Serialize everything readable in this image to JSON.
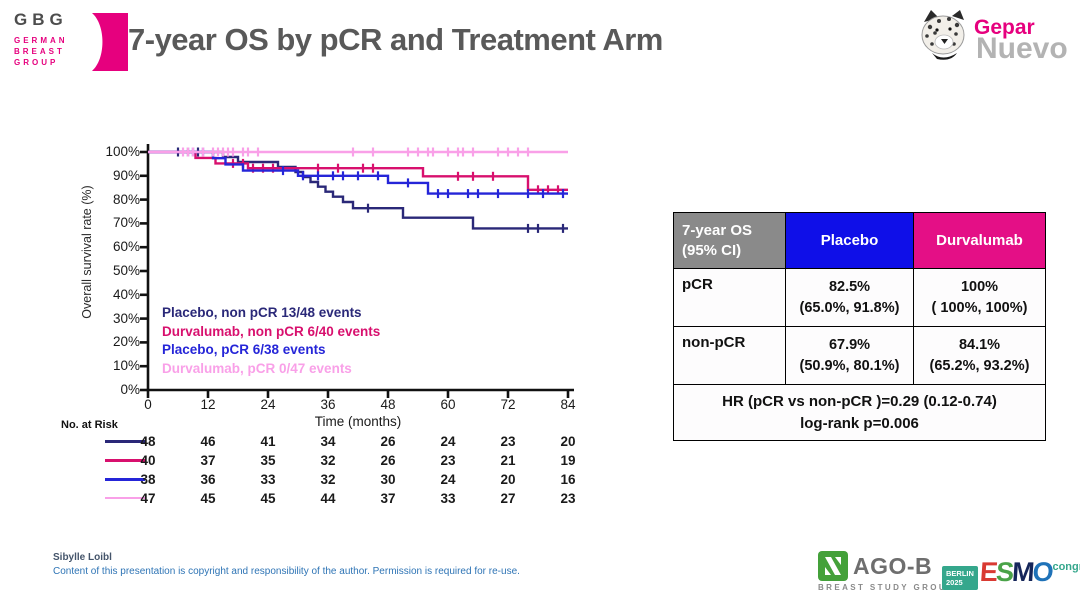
{
  "header": {
    "gbg": {
      "icon": "gbg-flag-icon",
      "acronym": "GBG",
      "lines": [
        "GERMAN",
        "BREAST",
        "GROUP"
      ],
      "brand_pink": "#e6007e"
    },
    "title": "7-year OS by pCR and Treatment Arm",
    "gepar": {
      "icon": "leopard-icon",
      "top": "Gepar",
      "bottom": "Nuevo"
    }
  },
  "chart_data": {
    "type": "line",
    "subtype": "kaplan-meier-step",
    "title": "",
    "xlabel": "Time (months)",
    "ylabel": "Overall survival rate (%)",
    "xlim": [
      0,
      84
    ],
    "ylim": [
      0,
      100
    ],
    "xticks": [
      0,
      12,
      24,
      36,
      48,
      60,
      72,
      84
    ],
    "ytick_step": 10,
    "ytick_suffix": "%",
    "grid": false,
    "legend_position": "inside lower-left",
    "at_risk_label": "No. at Risk",
    "series": [
      {
        "name": "Placebo, non pCR 13/48 events",
        "color": "#2a2878",
        "final_value": 67.9,
        "steps": [
          [
            15,
            97.9
          ],
          [
            18,
            95.8
          ],
          [
            26,
            93.7
          ],
          [
            29.5,
            91.6
          ],
          [
            31,
            89.5
          ],
          [
            32.5,
            87.4
          ],
          [
            34,
            85.4
          ],
          [
            35.5,
            83.3
          ],
          [
            37,
            81.2
          ],
          [
            39,
            79.0
          ],
          [
            41,
            76.4
          ],
          [
            51,
            72.4
          ],
          [
            65,
            67.9
          ]
        ],
        "censors": [
          6,
          8,
          10,
          44,
          76,
          78,
          83
        ],
        "at_risk": [
          48,
          46,
          41,
          34,
          26,
          24,
          23,
          20
        ]
      },
      {
        "name": "Durvalumab, non pCR 6/40 events",
        "color": "#d8106e",
        "final_value": 84.1,
        "steps": [
          [
            9.5,
            97.5
          ],
          [
            13.5,
            95.2
          ],
          [
            20,
            93.2
          ],
          [
            55,
            89.8
          ],
          [
            76,
            84.1
          ]
        ],
        "censors": [
          17,
          19,
          21,
          23,
          25,
          34,
          38,
          43,
          45,
          62,
          65,
          69,
          78,
          80,
          82
        ],
        "at_risk": [
          40,
          37,
          35,
          32,
          26,
          23,
          21,
          19
        ]
      },
      {
        "name": "Placebo, pCR 6/38 events",
        "color": "#2525d8",
        "final_value": 82.5,
        "steps": [
          [
            13,
            97.4
          ],
          [
            15.5,
            94.8
          ],
          [
            19,
            92.2
          ],
          [
            30,
            90.0
          ],
          [
            48,
            87.0
          ],
          [
            56,
            82.5
          ]
        ],
        "censors": [
          9,
          11,
          27,
          31,
          34,
          37,
          39,
          42,
          46,
          52,
          58,
          60,
          64,
          66,
          70,
          76,
          79,
          83
        ],
        "at_risk": [
          38,
          36,
          33,
          32,
          30,
          24,
          20,
          16
        ]
      },
      {
        "name": "Durvalumab, pCR 0/47 events",
        "color": "#f9a0e8",
        "final_value": 100,
        "steps": [],
        "censors": [
          7,
          8,
          9,
          11,
          13,
          14,
          15,
          16,
          17,
          19,
          20,
          22,
          41,
          45,
          52,
          54,
          56,
          57,
          60,
          62,
          63,
          65,
          70,
          72,
          74,
          76
        ],
        "at_risk": [
          47,
          45,
          45,
          44,
          37,
          33,
          27,
          23
        ]
      }
    ]
  },
  "results_table": {
    "header": {
      "corner_line1": "7-year OS",
      "corner_line2": "(95% CI)",
      "placebo": "Placebo",
      "durvalumab": "Durvalumab"
    },
    "colors": {
      "corner_bg": "#8a8a8a",
      "placebo_bg": "#0f0fe8",
      "durvalumab_bg": "#e40f86"
    },
    "rows": [
      {
        "label": "pCR",
        "placebo_pct": "82.5%",
        "placebo_ci": "(65.0%, 91.8%)",
        "durvalumab_pct": "100%",
        "durvalumab_ci": "( 100%, 100%)"
      },
      {
        "label": "non-pCR",
        "placebo_pct": "67.9%",
        "placebo_ci": "(50.9%, 80.1%)",
        "durvalumab_pct": "84.1%",
        "durvalumab_ci": "(65.2%, 93.2%)"
      }
    ],
    "footer_line1": "HR (pCR vs non-pCR )=0.29 (0.12-0.74)",
    "footer_line2": "log-rank p=0.006"
  },
  "footer": {
    "author": "Sibylle Loibl",
    "copyright": "Content of this presentation is copyright and responsibility of the author. Permission is required for re-use.",
    "agob": {
      "icon": "agob-ribbon-icon",
      "name": "AGO-B",
      "subtitle": "BREAST STUDY GROUP",
      "green": "#44a13a"
    },
    "esmo": {
      "badge_line1": "BERLIN",
      "badge_line2": "2025",
      "letters": [
        "E",
        "S",
        "M",
        "O"
      ],
      "letter_colors": [
        "#d93a32",
        "#4aa348",
        "#15265a",
        "#1f72b8"
      ],
      "congress": "congress",
      "teal": "#35a78c"
    }
  }
}
